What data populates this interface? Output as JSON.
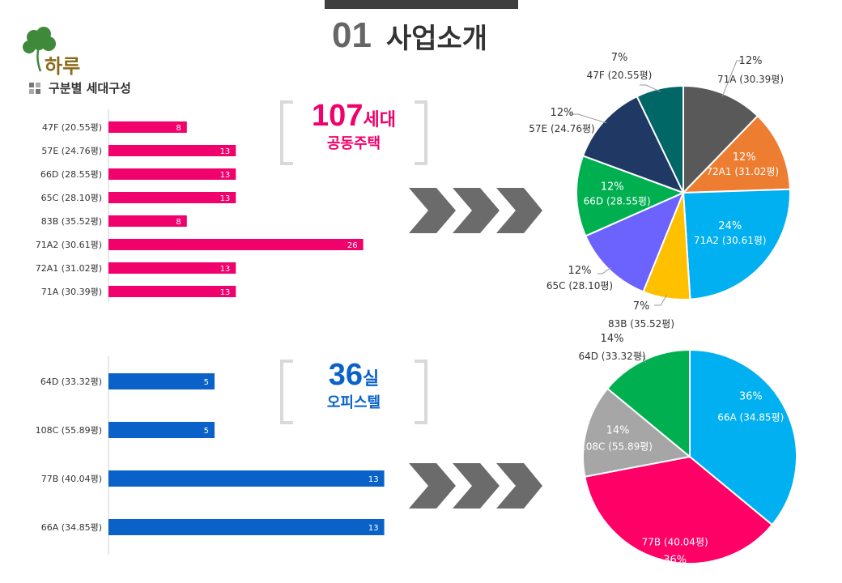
{
  "header": {
    "number": "01",
    "title": "사업소개"
  },
  "logo": {
    "text": "하루"
  },
  "section_label": "구분별 세대구성",
  "colors": {
    "housing": "#f0016b",
    "office": "#0a62c9"
  },
  "callouts": [
    {
      "count": "107",
      "unit": "세대",
      "label": "공동주택",
      "color": "#f0016b"
    },
    {
      "count": "36",
      "unit": "실",
      "label": "오피스텔",
      "color": "#0a62c9"
    }
  ],
  "chart_data": [
    {
      "type": "bar",
      "orientation": "horizontal",
      "categories": [
        "47F (20.55평)",
        "57E (24.76평)",
        "66D (28.55평)",
        "65C (28.10평)",
        "83B (35.52평)",
        "71A2 (30.61평)",
        "72A1 (31.02평)",
        "71A (30.39평)"
      ],
      "values": [
        8,
        13,
        13,
        13,
        8,
        26,
        13,
        13
      ],
      "color": "#f0016b"
    },
    {
      "type": "bar",
      "orientation": "horizontal",
      "categories": [
        "64D (33.32평)",
        "108C (55.89평)",
        "77B (40.04평)",
        "66A (34.85평)"
      ],
      "values": [
        5,
        5,
        13,
        13
      ],
      "color": "#0a62c9"
    },
    {
      "type": "pie",
      "slices": [
        {
          "label": "71A (30.39평)",
          "pct": 12,
          "pct_label": "12%",
          "color": "#595959"
        },
        {
          "label": "72A1 (31.02평)",
          "pct": 12,
          "pct_label": "12%",
          "color": "#ed7d31"
        },
        {
          "label": "71A2 (30.61평)",
          "pct": 24,
          "pct_label": "24%",
          "color": "#00b0f0"
        },
        {
          "label": "83B (35.52평)",
          "pct": 7,
          "pct_label": "7%",
          "color": "#ffc000"
        },
        {
          "label": "65C (28.10평)",
          "pct": 12,
          "pct_label": "12%",
          "color": "#6c63ff"
        },
        {
          "label": "66D (28.55평)",
          "pct": 12,
          "pct_label": "12%",
          "color": "#00b050"
        },
        {
          "label": "57E (24.76평)",
          "pct": 12,
          "pct_label": "12%",
          "color": "#203864"
        },
        {
          "label": "47F (20.55평)",
          "pct": 7,
          "pct_label": "7%",
          "color": "#006666"
        }
      ]
    },
    {
      "type": "pie",
      "slices": [
        {
          "label": "66A (34.85평)",
          "pct": 36,
          "pct_label": "36%",
          "color": "#00b0f0"
        },
        {
          "label": "77B (40.04평)",
          "pct": 36,
          "pct_label": "36%",
          "color": "#ff0066"
        },
        {
          "label": "108C (55.89평)",
          "pct": 14,
          "pct_label": "14%",
          "color": "#a6a6a6"
        },
        {
          "label": "64D (33.32평)",
          "pct": 14,
          "pct_label": "14%",
          "color": "#00b050"
        }
      ]
    }
  ]
}
